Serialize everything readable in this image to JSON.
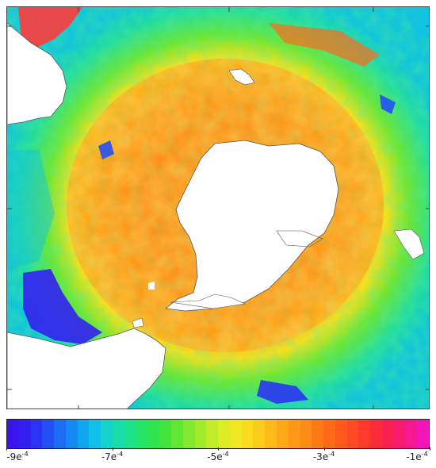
{
  "map": {
    "land_color": "#ffffff",
    "coast_color": "#555555",
    "ocean_base_color": "#4fd39a"
  },
  "colorbar": {
    "colors": [
      "#3b14ee",
      "#3320f0",
      "#2a34f2",
      "#2350f4",
      "#1c6cf5",
      "#1488f5",
      "#0ea6f2",
      "#10c0e6",
      "#14d4cc",
      "#18dcaa",
      "#1ee28a",
      "#25e46a",
      "#2fe44f",
      "#44e43d",
      "#62e634",
      "#82e830",
      "#a2ea2c",
      "#c2ec28",
      "#dcec25",
      "#f0e821",
      "#fadc1d",
      "#fdcc1a",
      "#feba18",
      "#ffa817",
      "#ff9816",
      "#ff8a16",
      "#ff7a17",
      "#ff6a19",
      "#ff5a1c",
      "#ff4a22",
      "#ff3a2c",
      "#fd2c3a",
      "#fa2050",
      "#f71a6e",
      "#f51890",
      "#f216b8"
    ],
    "ticks": [
      {
        "base": "-9e",
        "exp": "-4",
        "frac": 0.0
      },
      {
        "base": "-7e",
        "exp": "-4",
        "frac": 0.25
      },
      {
        "base": "-5e",
        "exp": "-4",
        "frac": 0.5
      },
      {
        "base": "-3e",
        "exp": "-4",
        "frac": 0.75
      },
      {
        "base": "-1e",
        "exp": "-4",
        "frac": 1.0
      }
    ]
  }
}
